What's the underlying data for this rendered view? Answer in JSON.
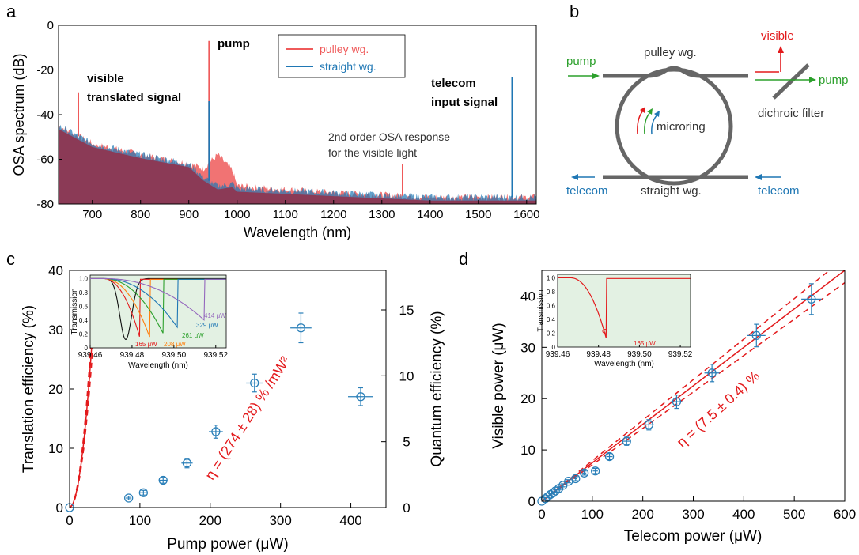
{
  "panel_letters": {
    "a": "a",
    "b": "b",
    "c": "c",
    "d": "d"
  },
  "colors": {
    "pulley": "#ef5a5a",
    "straight": "#1f77b4",
    "overlap": "#8b3a56",
    "fit": "#e31a1c",
    "data": "#2a7fb8",
    "pump_green": "#2ca02c",
    "visible_red": "#e31a1c",
    "telecom_blue": "#1f77b4",
    "inset_bg": "#e3f1e3",
    "waveguide": "#666666"
  },
  "panel_a": {
    "ylabel": "OSA spectrum (dB)",
    "xlabel": "Wavelength (nm)",
    "xticks": [
      "700",
      "800",
      "900",
      "1000",
      "1100",
      "1200",
      "1300",
      "1400",
      "1500",
      "1600"
    ],
    "yticks": [
      "0",
      "-20",
      "-40",
      "-60",
      "-80"
    ],
    "legend": {
      "pulley": "pulley wg.",
      "straight": "straight wg."
    },
    "annotations": {
      "pump": "pump",
      "visible_1": "visible",
      "visible_2": "translated signal",
      "telecom_1": "telecom",
      "telecom_2": "input signal",
      "osa_1": "2nd order OSA response",
      "osa_2": "for the visible light"
    }
  },
  "panel_b": {
    "pump_left": "pump",
    "pump_right": "pump",
    "pulley": "pulley wg.",
    "visible": "visible",
    "dichroic": "dichroic filter",
    "microring": "microring",
    "telecom_left": "telecom",
    "telecom_right": "telecom",
    "straight": "straight wg."
  },
  "panel_c": {
    "ylabel": "Translation efficiency (%)",
    "ylabel_right": "Quantum efficiency  (%)",
    "xlabel": "Pump power (μW)",
    "xticks": [
      "0",
      "100",
      "200",
      "300",
      "400"
    ],
    "yticks": [
      "0",
      "10",
      "20",
      "30",
      "40"
    ],
    "yticks_right": [
      "0",
      "5",
      "10",
      "15"
    ],
    "fit_label": "η = (274 ± 28) % /mW²",
    "inset": {
      "ylabel": "Transmission",
      "xlabel": "Wavelength (nm)",
      "xticks": [
        "939.46",
        "939.48",
        "939.50",
        "939.52"
      ],
      "yticks": [
        "1.0",
        "0.8",
        "0.6",
        "0.4",
        "0.2",
        "0"
      ],
      "labels": [
        "165 μW",
        "208 μW",
        "261 μW",
        "329 μW",
        "414 μW"
      ]
    }
  },
  "panel_d": {
    "ylabel": "Visible power (μW)",
    "xlabel": "Telecom power (μW)",
    "xticks": [
      "0",
      "100",
      "200",
      "300",
      "400",
      "500",
      "600"
    ],
    "yticks": [
      "0",
      "10",
      "20",
      "30",
      "40"
    ],
    "fit_label": "η = (7.5 ± 0.4) %",
    "inset": {
      "ylabel": "Transmission",
      "xlabel": "Wavelength (nm)",
      "xticks": [
        "939.46",
        "939.48",
        "939.50",
        "939.52"
      ],
      "yticks": [
        "1.0",
        "0.8",
        "0.6",
        "0.4",
        "0.2",
        "0"
      ],
      "label": "165 μW"
    }
  },
  "chart_data": [
    {
      "type": "line",
      "panel": "a",
      "xlabel": "Wavelength (nm)",
      "ylabel": "OSA spectrum (dB)",
      "xlim": [
        630,
        1620
      ],
      "ylim": [
        -80,
        0
      ],
      "series": [
        {
          "name": "pulley wg.",
          "peaks": [
            {
              "x": 671,
              "y": -30
            },
            {
              "x": 942,
              "y": -7
            },
            {
              "x": 1343,
              "y": -62
            },
            {
              "x": 1570,
              "y": -64
            }
          ],
          "floor": [
            [
              630,
              -45
            ],
            [
              700,
              -53
            ],
            [
              800,
              -58
            ],
            [
              900,
              -62
            ],
            [
              930,
              -64
            ],
            [
              960,
              -58
            ],
            [
              990,
              -65
            ],
            [
              1000,
              -72
            ],
            [
              1200,
              -75
            ],
            [
              1400,
              -77
            ],
            [
              1620,
              -77
            ]
          ]
        },
        {
          "name": "straight wg.",
          "peaks": [
            {
              "x": 942,
              "y": -34
            },
            {
              "x": 1570,
              "y": -23
            }
          ],
          "floor": [
            [
              630,
              -45
            ],
            [
              700,
              -53
            ],
            [
              800,
              -58
            ],
            [
              900,
              -62
            ],
            [
              930,
              -68
            ],
            [
              960,
              -72
            ],
            [
              990,
              -71
            ],
            [
              1000,
              -73
            ],
            [
              1200,
              -75
            ],
            [
              1400,
              -77
            ],
            [
              1620,
              -77
            ]
          ]
        }
      ]
    },
    {
      "type": "scatter",
      "panel": "c",
      "xlabel": "Pump power (μW)",
      "ylabel": "Translation efficiency (%)",
      "xlim": [
        0,
        450
      ],
      "ylim": [
        0,
        40
      ],
      "points": [
        {
          "x": 0,
          "y": 0,
          "xerr": 0,
          "yerr": 0
        },
        {
          "x": 84,
          "y": 1.6,
          "xerr": 4,
          "yerr": 0.3
        },
        {
          "x": 105,
          "y": 2.5,
          "xerr": 5,
          "yerr": 0.4
        },
        {
          "x": 133,
          "y": 4.6,
          "xerr": 6,
          "yerr": 0.5
        },
        {
          "x": 167,
          "y": 7.5,
          "xerr": 8,
          "yerr": 0.8
        },
        {
          "x": 208,
          "y": 12.8,
          "xerr": 10,
          "yerr": 1.1
        },
        {
          "x": 263,
          "y": 21,
          "xerr": 12,
          "yerr": 1.5
        },
        {
          "x": 329,
          "y": 30.3,
          "xerr": 15,
          "yerr": 2.5
        },
        {
          "x": 414,
          "y": 18.7,
          "xerr": 18,
          "yerr": 1.5
        }
      ],
      "fit": {
        "coef_per_mW2": 274,
        "err": 28
      }
    },
    {
      "type": "scatter",
      "panel": "d",
      "xlabel": "Telecom power (μW)",
      "ylabel": "Visible power (μW)",
      "xlim": [
        0,
        600
      ],
      "ylim": [
        0,
        45
      ],
      "points": [
        {
          "x": 0,
          "y": 0,
          "xerr": 0,
          "yerr": 0
        },
        {
          "x": 7,
          "y": 0.5,
          "xerr": 1,
          "yerr": 0.2
        },
        {
          "x": 12,
          "y": 0.9,
          "xerr": 1,
          "yerr": 0.2
        },
        {
          "x": 17,
          "y": 1.3,
          "xerr": 1,
          "yerr": 0.2
        },
        {
          "x": 22,
          "y": 1.6,
          "xerr": 1,
          "yerr": 0.2
        },
        {
          "x": 27,
          "y": 2.0,
          "xerr": 1,
          "yerr": 0.2
        },
        {
          "x": 34,
          "y": 2.5,
          "xerr": 2,
          "yerr": 0.3
        },
        {
          "x": 42,
          "y": 3.1,
          "xerr": 2,
          "yerr": 0.3
        },
        {
          "x": 53,
          "y": 3.9,
          "xerr": 3,
          "yerr": 0.3
        },
        {
          "x": 67,
          "y": 4.4,
          "xerr": 3,
          "yerr": 0.4
        },
        {
          "x": 84,
          "y": 5.5,
          "xerr": 4,
          "yerr": 0.4
        },
        {
          "x": 106,
          "y": 5.9,
          "xerr": 5,
          "yerr": 0.5
        },
        {
          "x": 134,
          "y": 8.7,
          "xerr": 6,
          "yerr": 0.6
        },
        {
          "x": 168,
          "y": 11.7,
          "xerr": 8,
          "yerr": 0.8
        },
        {
          "x": 212,
          "y": 14.9,
          "xerr": 10,
          "yerr": 1.0
        },
        {
          "x": 267,
          "y": 19.4,
          "xerr": 12,
          "yerr": 1.3
        },
        {
          "x": 337,
          "y": 25.0,
          "xerr": 15,
          "yerr": 1.7
        },
        {
          "x": 425,
          "y": 32.3,
          "xerr": 18,
          "yerr": 2.2
        },
        {
          "x": 534,
          "y": 39.4,
          "xerr": 20,
          "yerr": 3.0
        }
      ],
      "fit": {
        "slope_percent": 7.5,
        "err": 0.4
      }
    }
  ]
}
